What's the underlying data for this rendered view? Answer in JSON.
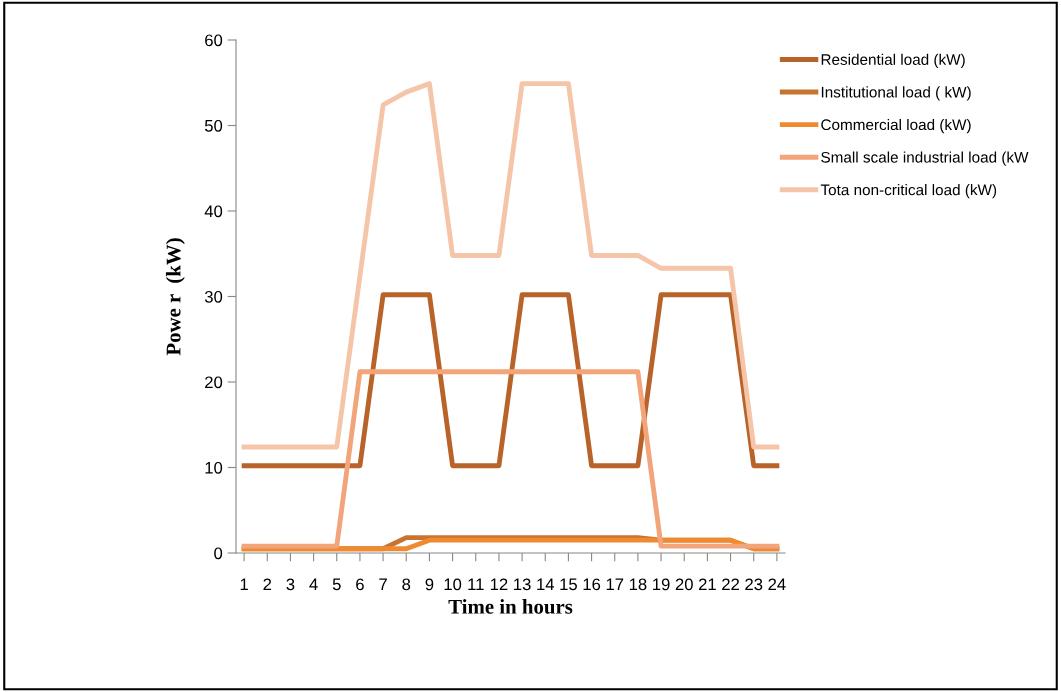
{
  "chart_data": {
    "type": "line",
    "xlabel": "Time in hours",
    "ylabel": "Powe r  (kW)",
    "categories": [
      "1",
      "2",
      "3",
      "4",
      "5",
      "6",
      "7",
      "8",
      "9",
      "10",
      "11",
      "12",
      "13",
      "14",
      "15",
      "16",
      "17",
      "18",
      "19",
      "20",
      "21",
      "22",
      "23",
      "24"
    ],
    "ylim": [
      0,
      60
    ],
    "yticks": [
      0,
      10,
      20,
      30,
      40,
      50,
      60
    ],
    "grid": false,
    "legend": "top right",
    "marker": "none",
    "line_style": "solid",
    "series": [
      {
        "name": "Residential load (kW)",
        "color": "#b8632a",
        "values": [
          10.2,
          10.2,
          10.2,
          10.2,
          10.2,
          10.2,
          30.2,
          30.2,
          30.2,
          10.2,
          10.2,
          10.2,
          30.2,
          30.2,
          30.2,
          10.2,
          10.2,
          10.2,
          30.2,
          30.2,
          30.2,
          30.2,
          10.2,
          10.2
        ]
      },
      {
        "name": "Institutional load ( kW)",
        "color": "#c8742e",
        "values": [
          0.5,
          0.5,
          0.5,
          0.5,
          0.5,
          0.5,
          0.5,
          1.8,
          1.8,
          1.8,
          1.8,
          1.8,
          1.8,
          1.8,
          1.8,
          1.8,
          1.8,
          1.8,
          1.5,
          1.5,
          1.5,
          1.5,
          0.5,
          0.5
        ]
      },
      {
        "name": "Commercial load (kW)",
        "color": "#f08a30",
        "values": [
          0.5,
          0.5,
          0.5,
          0.5,
          0.5,
          0.5,
          0.5,
          0.5,
          1.5,
          1.5,
          1.5,
          1.5,
          1.5,
          1.5,
          1.5,
          1.5,
          1.5,
          1.5,
          1.5,
          1.5,
          1.5,
          1.5,
          0.5,
          0.5
        ]
      },
      {
        "name": "Small scale industrial load (kW",
        "color": "#f2a57a",
        "values": [
          0.8,
          0.8,
          0.8,
          0.8,
          0.8,
          21.2,
          21.2,
          21.2,
          21.2,
          21.2,
          21.2,
          21.2,
          21.2,
          21.2,
          21.2,
          21.2,
          21.2,
          21.2,
          0.8,
          0.8,
          0.8,
          0.8,
          0.8,
          0.8
        ]
      },
      {
        "name": "Tota non-critical load (kW)",
        "color": "#f5c5aa",
        "values": [
          12.4,
          12.4,
          12.4,
          12.4,
          12.4,
          32.4,
          52.4,
          53.9,
          54.9,
          34.8,
          34.8,
          34.8,
          54.9,
          54.9,
          54.9,
          34.8,
          34.8,
          34.8,
          33.3,
          33.3,
          33.3,
          33.3,
          12.4,
          12.4
        ]
      }
    ]
  }
}
